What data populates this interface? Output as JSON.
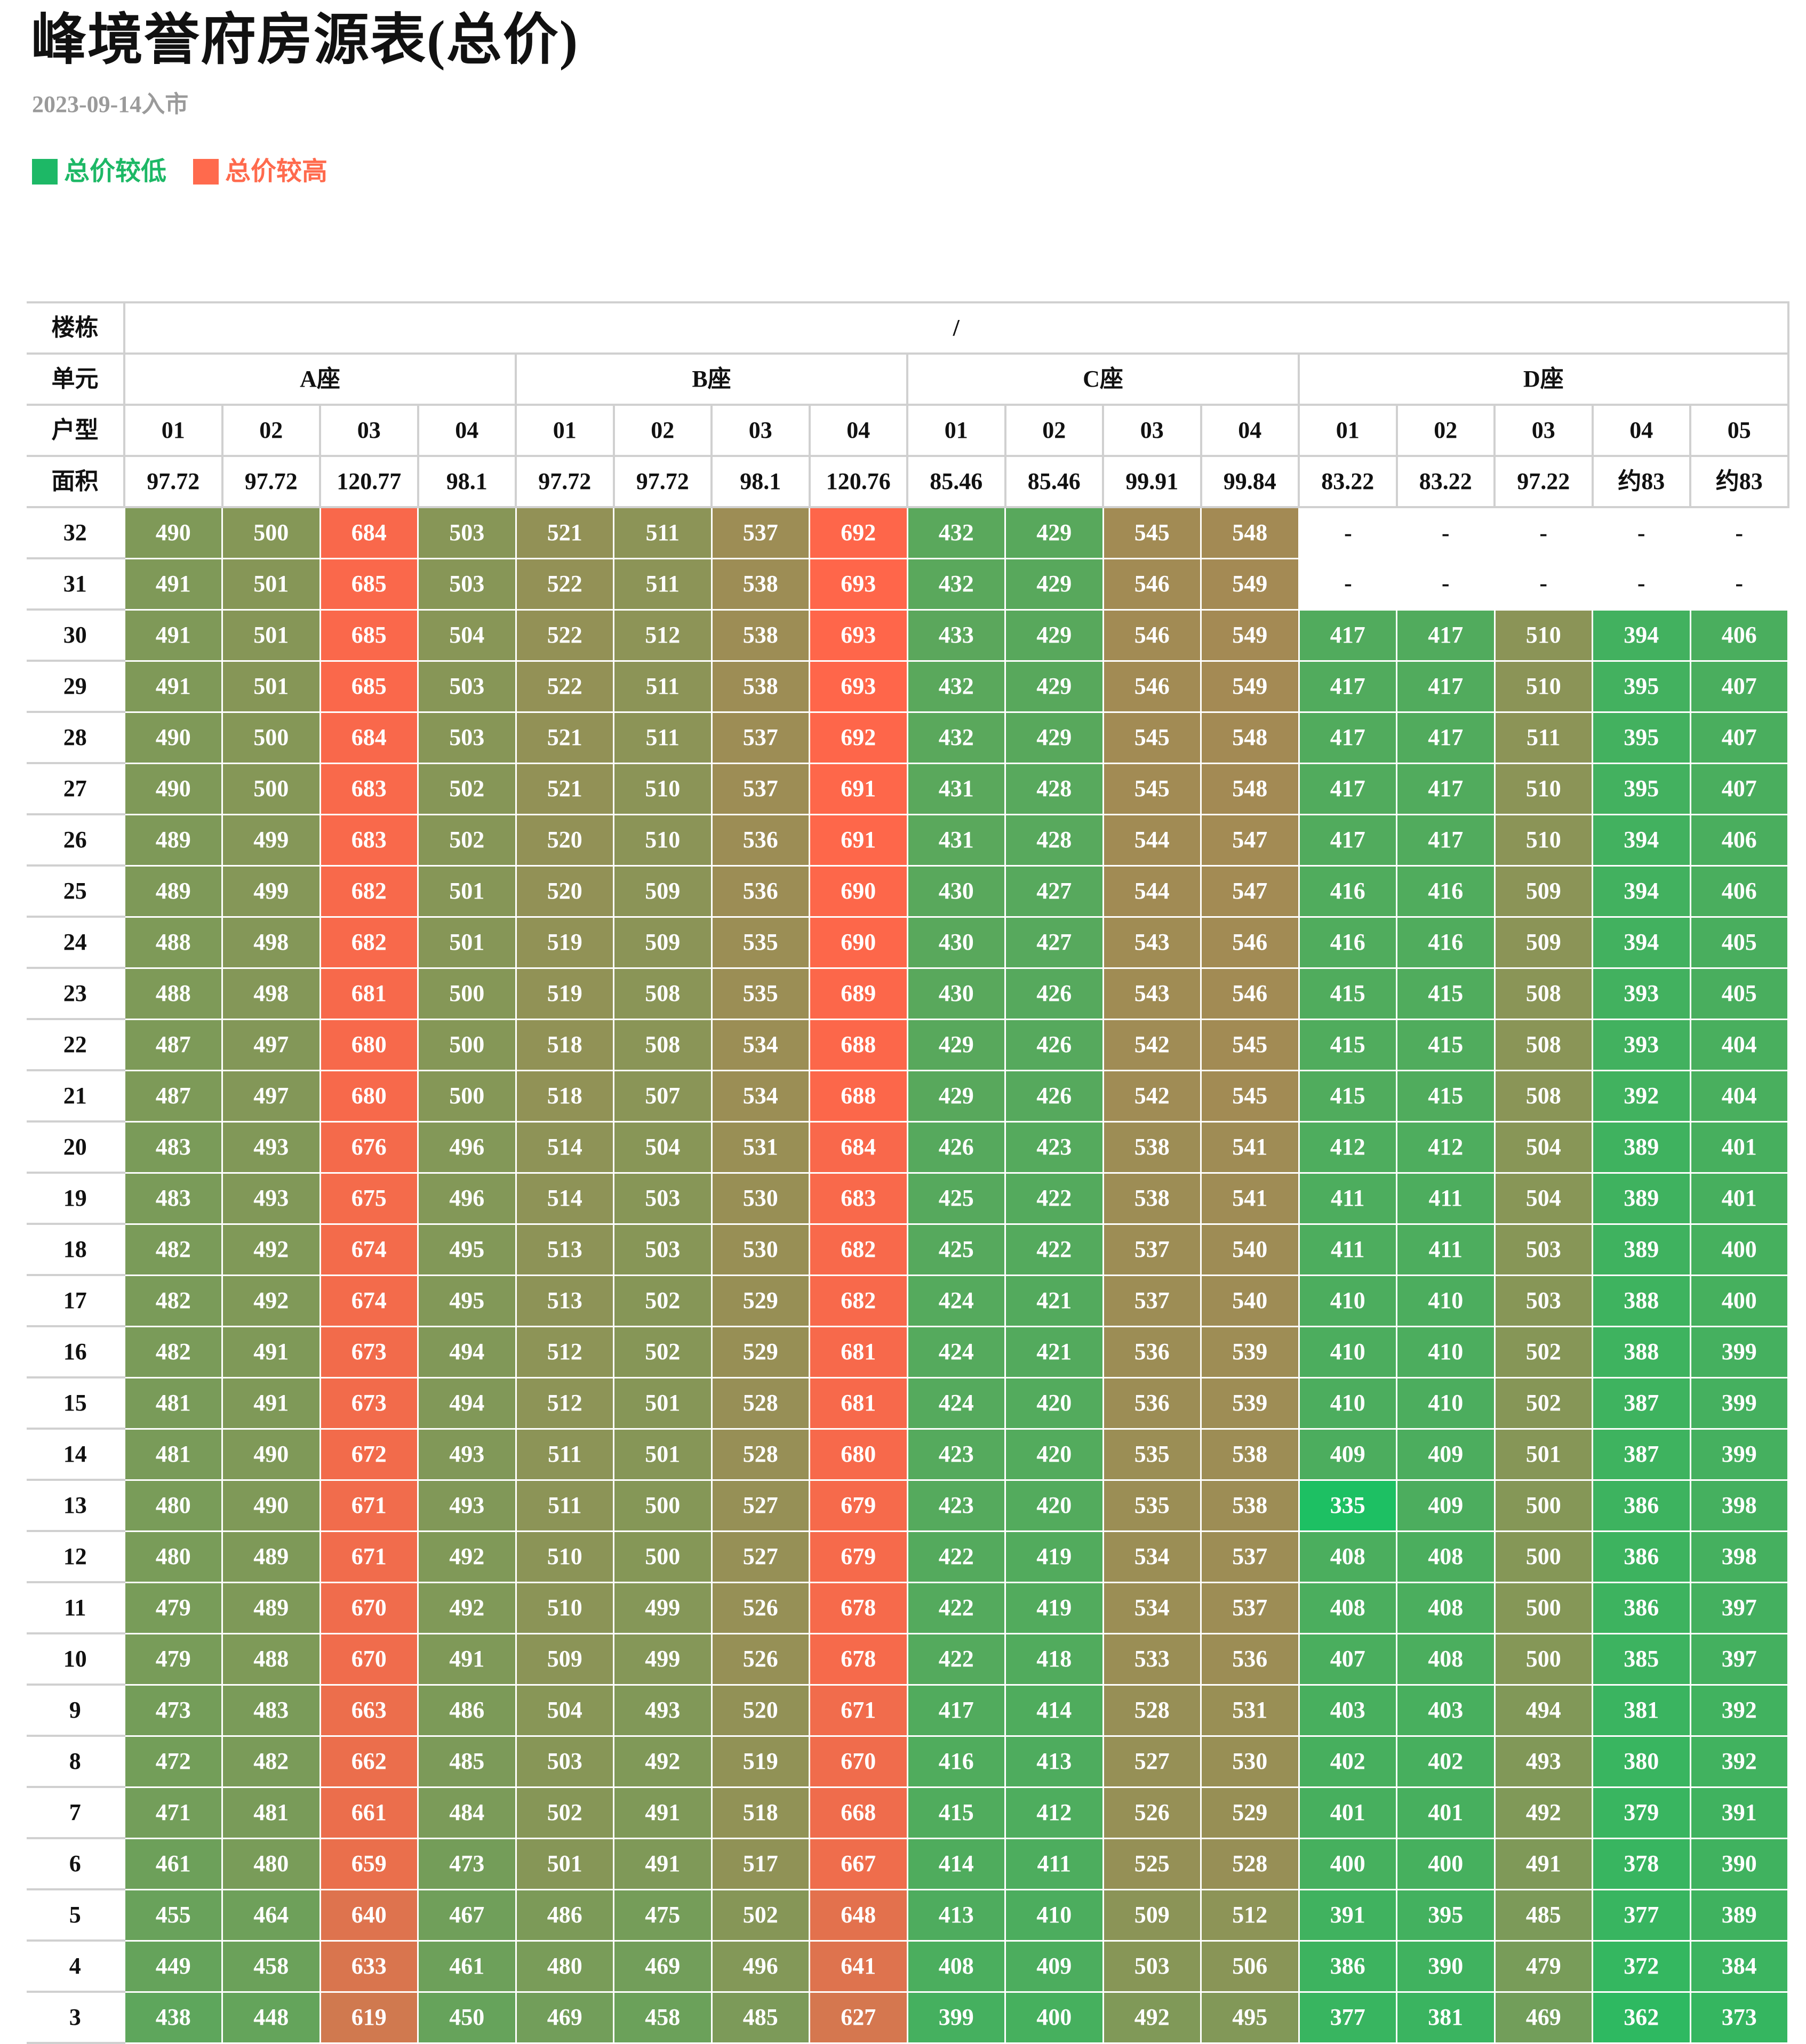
{
  "title": "峰境誉府房源表(总价)",
  "subtitle": "2023-09-14入市",
  "legend": {
    "low_label": "总价较低",
    "low_color": "#1db866",
    "high_label": "总价较高",
    "high_color": "#ff6a4d"
  },
  "table": {
    "building_label": "楼栋",
    "building_value": "/",
    "unit_label": "单元",
    "type_label": "户型",
    "area_label": "面积",
    "blocks": [
      {
        "name": "A座",
        "types": [
          "01",
          "02",
          "03",
          "04"
        ],
        "areas": [
          "97.72",
          "97.72",
          "120.77",
          "98.1"
        ]
      },
      {
        "name": "B座",
        "types": [
          "01",
          "02",
          "03",
          "04"
        ],
        "areas": [
          "97.72",
          "97.72",
          "98.1",
          "120.76"
        ]
      },
      {
        "name": "C座",
        "types": [
          "01",
          "02",
          "03",
          "04"
        ],
        "areas": [
          "85.46",
          "85.46",
          "99.91",
          "99.84"
        ]
      },
      {
        "name": "D座",
        "types": [
          "01",
          "02",
          "03",
          "04",
          "05"
        ],
        "areas": [
          "83.22",
          "83.22",
          "97.22",
          "约83",
          "约83"
        ]
      }
    ],
    "rows": [
      {
        "floor": "32",
        "values": [
          "490",
          "500",
          "684",
          "503",
          "521",
          "511",
          "537",
          "692",
          "432",
          "429",
          "545",
          "548",
          "-",
          "-",
          "-",
          "-",
          "-"
        ]
      },
      {
        "floor": "31",
        "values": [
          "491",
          "501",
          "685",
          "503",
          "522",
          "511",
          "538",
          "693",
          "432",
          "429",
          "546",
          "549",
          "-",
          "-",
          "-",
          "-",
          "-"
        ]
      },
      {
        "floor": "30",
        "values": [
          "491",
          "501",
          "685",
          "504",
          "522",
          "512",
          "538",
          "693",
          "433",
          "429",
          "546",
          "549",
          "417",
          "417",
          "510",
          "394",
          "406"
        ]
      },
      {
        "floor": "29",
        "values": [
          "491",
          "501",
          "685",
          "503",
          "522",
          "511",
          "538",
          "693",
          "432",
          "429",
          "546",
          "549",
          "417",
          "417",
          "510",
          "395",
          "407"
        ]
      },
      {
        "floor": "28",
        "values": [
          "490",
          "500",
          "684",
          "503",
          "521",
          "511",
          "537",
          "692",
          "432",
          "429",
          "545",
          "548",
          "417",
          "417",
          "511",
          "395",
          "407"
        ]
      },
      {
        "floor": "27",
        "values": [
          "490",
          "500",
          "683",
          "502",
          "521",
          "510",
          "537",
          "691",
          "431",
          "428",
          "545",
          "548",
          "417",
          "417",
          "510",
          "395",
          "407"
        ]
      },
      {
        "floor": "26",
        "values": [
          "489",
          "499",
          "683",
          "502",
          "520",
          "510",
          "536",
          "691",
          "431",
          "428",
          "544",
          "547",
          "417",
          "417",
          "510",
          "394",
          "406"
        ]
      },
      {
        "floor": "25",
        "values": [
          "489",
          "499",
          "682",
          "501",
          "520",
          "509",
          "536",
          "690",
          "430",
          "427",
          "544",
          "547",
          "416",
          "416",
          "509",
          "394",
          "406"
        ]
      },
      {
        "floor": "24",
        "values": [
          "488",
          "498",
          "682",
          "501",
          "519",
          "509",
          "535",
          "690",
          "430",
          "427",
          "543",
          "546",
          "416",
          "416",
          "509",
          "394",
          "405"
        ]
      },
      {
        "floor": "23",
        "values": [
          "488",
          "498",
          "681",
          "500",
          "519",
          "508",
          "535",
          "689",
          "430",
          "426",
          "543",
          "546",
          "415",
          "415",
          "508",
          "393",
          "405"
        ]
      },
      {
        "floor": "22",
        "values": [
          "487",
          "497",
          "680",
          "500",
          "518",
          "508",
          "534",
          "688",
          "429",
          "426",
          "542",
          "545",
          "415",
          "415",
          "508",
          "393",
          "404"
        ]
      },
      {
        "floor": "21",
        "values": [
          "487",
          "497",
          "680",
          "500",
          "518",
          "507",
          "534",
          "688",
          "429",
          "426",
          "542",
          "545",
          "415",
          "415",
          "508",
          "392",
          "404"
        ]
      },
      {
        "floor": "20",
        "values": [
          "483",
          "493",
          "676",
          "496",
          "514",
          "504",
          "531",
          "684",
          "426",
          "423",
          "538",
          "541",
          "412",
          "412",
          "504",
          "389",
          "401"
        ]
      },
      {
        "floor": "19",
        "values": [
          "483",
          "493",
          "675",
          "496",
          "514",
          "503",
          "530",
          "683",
          "425",
          "422",
          "538",
          "541",
          "411",
          "411",
          "504",
          "389",
          "401"
        ]
      },
      {
        "floor": "18",
        "values": [
          "482",
          "492",
          "674",
          "495",
          "513",
          "503",
          "530",
          "682",
          "425",
          "422",
          "537",
          "540",
          "411",
          "411",
          "503",
          "389",
          "400"
        ]
      },
      {
        "floor": "17",
        "values": [
          "482",
          "492",
          "674",
          "495",
          "513",
          "502",
          "529",
          "682",
          "424",
          "421",
          "537",
          "540",
          "410",
          "410",
          "503",
          "388",
          "400"
        ]
      },
      {
        "floor": "16",
        "values": [
          "482",
          "491",
          "673",
          "494",
          "512",
          "502",
          "529",
          "681",
          "424",
          "421",
          "536",
          "539",
          "410",
          "410",
          "502",
          "388",
          "399"
        ]
      },
      {
        "floor": "15",
        "values": [
          "481",
          "491",
          "673",
          "494",
          "512",
          "501",
          "528",
          "681",
          "424",
          "420",
          "536",
          "539",
          "410",
          "410",
          "502",
          "387",
          "399"
        ]
      },
      {
        "floor": "14",
        "values": [
          "481",
          "490",
          "672",
          "493",
          "511",
          "501",
          "528",
          "680",
          "423",
          "420",
          "535",
          "538",
          "409",
          "409",
          "501",
          "387",
          "399"
        ]
      },
      {
        "floor": "13",
        "values": [
          "480",
          "490",
          "671",
          "493",
          "511",
          "500",
          "527",
          "679",
          "423",
          "420",
          "535",
          "538",
          "335",
          "409",
          "500",
          "386",
          "398"
        ]
      },
      {
        "floor": "12",
        "values": [
          "480",
          "489",
          "671",
          "492",
          "510",
          "500",
          "527",
          "679",
          "422",
          "419",
          "534",
          "537",
          "408",
          "408",
          "500",
          "386",
          "398"
        ]
      },
      {
        "floor": "11",
        "values": [
          "479",
          "489",
          "670",
          "492",
          "510",
          "499",
          "526",
          "678",
          "422",
          "419",
          "534",
          "537",
          "408",
          "408",
          "500",
          "386",
          "397"
        ]
      },
      {
        "floor": "10",
        "values": [
          "479",
          "488",
          "670",
          "491",
          "509",
          "499",
          "526",
          "678",
          "422",
          "418",
          "533",
          "536",
          "407",
          "408",
          "500",
          "385",
          "397"
        ]
      },
      {
        "floor": "9",
        "values": [
          "473",
          "483",
          "663",
          "486",
          "504",
          "493",
          "520",
          "671",
          "417",
          "414",
          "528",
          "531",
          "403",
          "403",
          "494",
          "381",
          "392"
        ]
      },
      {
        "floor": "8",
        "values": [
          "472",
          "482",
          "662",
          "485",
          "503",
          "492",
          "519",
          "670",
          "416",
          "413",
          "527",
          "530",
          "402",
          "402",
          "493",
          "380",
          "392"
        ]
      },
      {
        "floor": "7",
        "values": [
          "471",
          "481",
          "661",
          "484",
          "502",
          "491",
          "518",
          "668",
          "415",
          "412",
          "526",
          "529",
          "401",
          "401",
          "492",
          "379",
          "391"
        ]
      },
      {
        "floor": "6",
        "values": [
          "461",
          "480",
          "659",
          "473",
          "501",
          "491",
          "517",
          "667",
          "414",
          "411",
          "525",
          "528",
          "400",
          "400",
          "491",
          "378",
          "390"
        ]
      },
      {
        "floor": "5",
        "values": [
          "455",
          "464",
          "640",
          "467",
          "486",
          "475",
          "502",
          "648",
          "413",
          "410",
          "509",
          "512",
          "391",
          "395",
          "485",
          "377",
          "389"
        ]
      },
      {
        "floor": "4",
        "values": [
          "449",
          "458",
          "633",
          "461",
          "480",
          "469",
          "496",
          "641",
          "408",
          "409",
          "503",
          "506",
          "386",
          "390",
          "479",
          "372",
          "384"
        ]
      },
      {
        "floor": "3",
        "values": [
          "438",
          "448",
          "619",
          "450",
          "469",
          "458",
          "485",
          "627",
          "399",
          "400",
          "492",
          "495",
          "377",
          "381",
          "469",
          "362",
          "373"
        ]
      }
    ]
  }
}
